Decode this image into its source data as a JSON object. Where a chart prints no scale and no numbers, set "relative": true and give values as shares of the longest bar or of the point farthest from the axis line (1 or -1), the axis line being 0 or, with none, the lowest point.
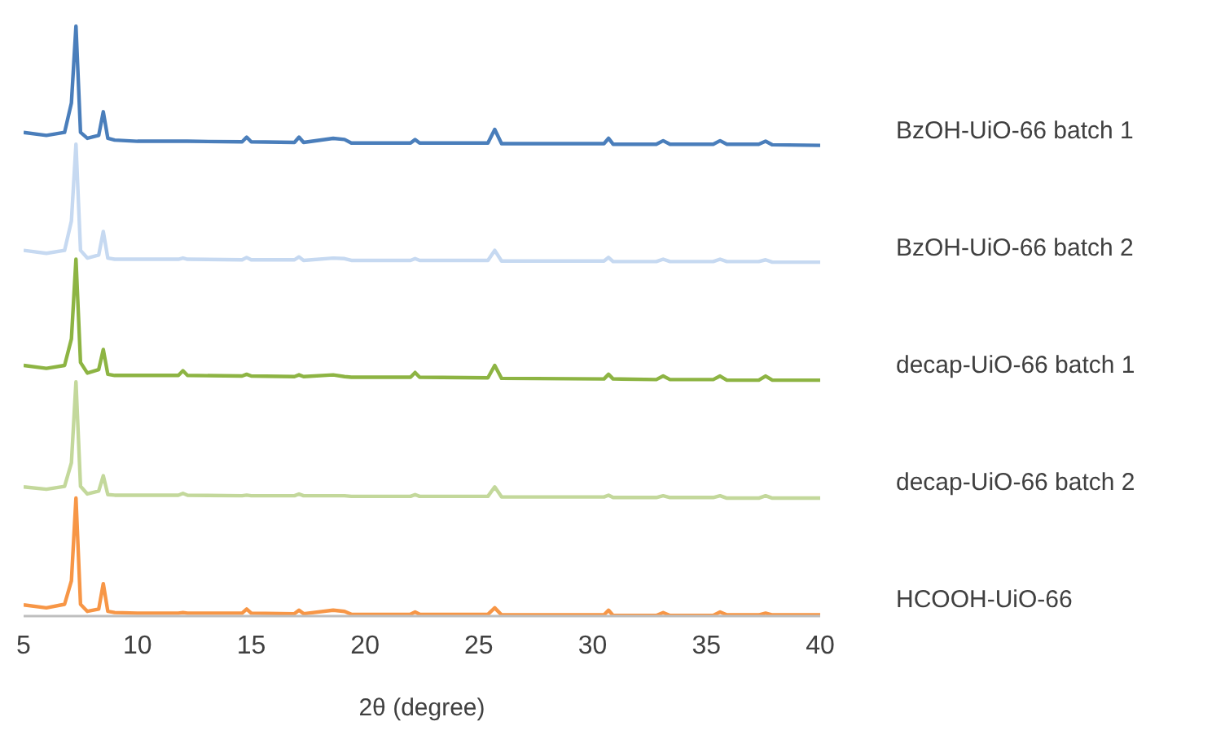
{
  "chart_data": {
    "type": "line",
    "relative": true,
    "xlabel": "2θ (degree)",
    "xlim": [
      5,
      40
    ],
    "xticks": [
      5,
      10,
      15,
      20,
      25,
      30,
      35,
      40
    ],
    "grid": false,
    "legend": "right",
    "marker": "none",
    "line_style": "solid",
    "x": [
      5,
      6,
      6.8,
      7.1,
      7.3,
      7.5,
      7.8,
      8.3,
      8.5,
      8.7,
      9,
      10,
      11.8,
      12,
      12.2,
      14.6,
      14.8,
      15,
      16.9,
      17.1,
      17.3,
      18.6,
      19.1,
      19.4,
      22,
      22.2,
      22.4,
      25.4,
      25.7,
      26,
      30.5,
      30.7,
      30.9,
      32.8,
      33.1,
      33.4,
      35.3,
      35.6,
      35.9,
      37.3,
      37.6,
      37.9,
      40
    ],
    "series": [
      {
        "name": "BzOH-UiO-66 batch 1",
        "color": "#4a7ebb",
        "values": [
          0.82,
          0.815,
          0.82,
          0.87,
          1.0,
          0.82,
          0.81,
          0.815,
          0.855,
          0.81,
          0.807,
          0.805,
          0.805,
          0.805,
          0.805,
          0.804,
          0.812,
          0.804,
          0.803,
          0.812,
          0.803,
          0.81,
          0.808,
          0.802,
          0.802,
          0.808,
          0.802,
          0.802,
          0.825,
          0.801,
          0.801,
          0.81,
          0.8,
          0.8,
          0.806,
          0.8,
          0.8,
          0.806,
          0.8,
          0.8,
          0.805,
          0.799,
          0.798
        ]
      },
      {
        "name": "BzOH-UiO-66 batch 2",
        "color": "#c6d9f1",
        "values": [
          0.62,
          0.615,
          0.62,
          0.67,
          0.8,
          0.62,
          0.607,
          0.612,
          0.652,
          0.607,
          0.605,
          0.605,
          0.605,
          0.607,
          0.605,
          0.604,
          0.608,
          0.604,
          0.604,
          0.609,
          0.603,
          0.607,
          0.606,
          0.603,
          0.603,
          0.606,
          0.603,
          0.603,
          0.62,
          0.602,
          0.602,
          0.608,
          0.601,
          0.601,
          0.605,
          0.601,
          0.601,
          0.605,
          0.601,
          0.601,
          0.604,
          0.6,
          0.6
        ]
      },
      {
        "name": "decap-UiO-66 batch 1",
        "color": "#8db443",
        "values": [
          0.425,
          0.42,
          0.425,
          0.47,
          0.605,
          0.43,
          0.412,
          0.418,
          0.452,
          0.41,
          0.408,
          0.408,
          0.408,
          0.416,
          0.408,
          0.407,
          0.41,
          0.407,
          0.406,
          0.409,
          0.406,
          0.409,
          0.406,
          0.405,
          0.405,
          0.413,
          0.405,
          0.404,
          0.425,
          0.403,
          0.402,
          0.41,
          0.402,
          0.401,
          0.407,
          0.401,
          0.401,
          0.407,
          0.4,
          0.4,
          0.407,
          0.4,
          0.4
        ]
      },
      {
        "name": "decap-UiO-66 batch 2",
        "color": "#c3d89b",
        "values": [
          0.219,
          0.215,
          0.22,
          0.26,
          0.397,
          0.22,
          0.207,
          0.212,
          0.238,
          0.206,
          0.205,
          0.205,
          0.205,
          0.208,
          0.205,
          0.204,
          0.205,
          0.204,
          0.204,
          0.207,
          0.204,
          0.204,
          0.204,
          0.203,
          0.203,
          0.206,
          0.203,
          0.203,
          0.219,
          0.202,
          0.202,
          0.205,
          0.201,
          0.201,
          0.204,
          0.201,
          0.201,
          0.204,
          0.2,
          0.2,
          0.204,
          0.2,
          0.2
        ]
      },
      {
        "name": "HCOOH-UiO-66",
        "color": "#f79646",
        "values": [
          0.019,
          0.014,
          0.02,
          0.06,
          0.2,
          0.02,
          0.008,
          0.012,
          0.055,
          0.008,
          0.006,
          0.005,
          0.005,
          0.006,
          0.005,
          0.005,
          0.012,
          0.005,
          0.004,
          0.01,
          0.004,
          0.01,
          0.008,
          0.003,
          0.003,
          0.007,
          0.003,
          0.003,
          0.014,
          0.002,
          0.002,
          0.01,
          0.001,
          0.001,
          0.006,
          0.001,
          0.001,
          0.007,
          0.002,
          0.002,
          0.005,
          0.002,
          0.002
        ]
      }
    ]
  }
}
